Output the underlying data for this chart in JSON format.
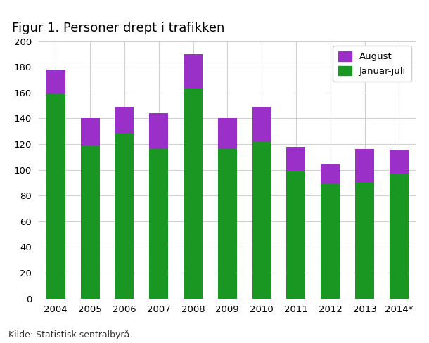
{
  "title": "Figur 1. Personer drept i trafikken",
  "years": [
    "2004",
    "2005",
    "2006",
    "2007",
    "2008",
    "2009",
    "2010",
    "2011",
    "2012",
    "2013",
    "2014*"
  ],
  "januar_juli": [
    159,
    119,
    128,
    116,
    163,
    116,
    122,
    99,
    89,
    90,
    97
  ],
  "august": [
    19,
    21,
    21,
    28,
    27,
    24,
    27,
    19,
    15,
    26,
    18
  ],
  "color_green": "#1a9622",
  "color_purple": "#9b30c8",
  "ylim": [
    0,
    200
  ],
  "yticks": [
    0,
    20,
    40,
    60,
    80,
    100,
    120,
    140,
    160,
    180,
    200
  ],
  "legend_august": "August",
  "legend_jan_juli": "Januar-juli",
  "source": "Kilde: Statistisk sentralbyrå.",
  "background_color": "#ffffff",
  "grid_color": "#d0d0d0"
}
